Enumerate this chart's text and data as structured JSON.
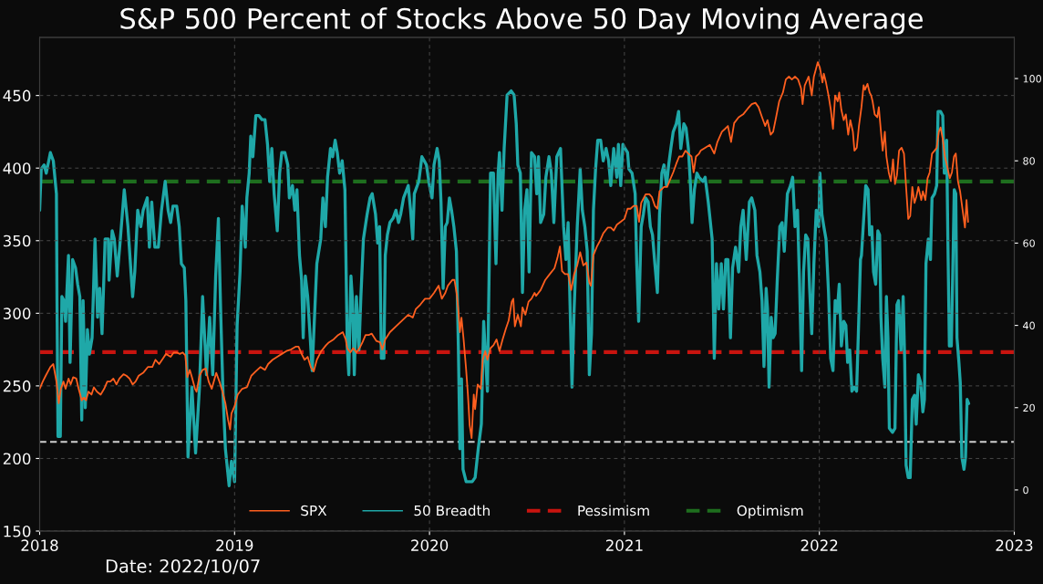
{
  "chart_data": {
    "type": "line",
    "title": "S&P 500 Percent of Stocks Above 50 Day Moving Average",
    "xlim": [
      2018,
      2023
    ],
    "xticks": [
      2018,
      2019,
      2020,
      2021,
      2022,
      2023
    ],
    "ylim": [
      150,
      490
    ],
    "yticks": [
      150,
      200,
      250,
      300,
      350,
      400,
      450
    ],
    "y2lim": [
      -10,
      110
    ],
    "y2ticks": [
      0,
      20,
      40,
      60,
      80,
      100
    ],
    "grid": true,
    "legend": "bottom",
    "annotations": [
      "Date: 2022/10/07"
    ],
    "series": [
      {
        "name": "SPX",
        "color": "#ff5f1f",
        "x": [
          2018.0,
          2018.016,
          2018.031,
          2018.055,
          2018.07,
          2018.086,
          2018.098,
          2018.109,
          2018.122,
          2018.133,
          2018.148,
          2018.159,
          2018.172,
          2018.188,
          2018.2,
          2018.216,
          2018.227,
          2018.238,
          2018.25,
          2018.266,
          2018.278,
          2018.294,
          2018.313,
          2018.331,
          2018.347,
          2018.363,
          2018.378,
          2018.394,
          2018.409,
          2018.43,
          2018.445,
          2018.461,
          2018.477,
          2018.492,
          2018.508,
          2018.531,
          2018.555,
          2018.578,
          2018.594,
          2018.613,
          2018.633,
          2018.648,
          2018.672,
          2018.688,
          2018.703,
          2018.719,
          2018.734,
          2018.747,
          2018.758,
          2018.77,
          2018.781,
          2018.797,
          2018.805,
          2018.82,
          2018.836,
          2018.852,
          2018.867,
          2018.883,
          2018.906,
          2018.922,
          2018.938,
          2018.953,
          2018.966,
          2018.977,
          2018.984,
          2019.0,
          2019.016,
          2019.039,
          2019.063,
          2019.086,
          2019.109,
          2019.133,
          2019.156,
          2019.172,
          2019.195,
          2019.219,
          2019.242,
          2019.266,
          2019.289,
          2019.313,
          2019.328,
          2019.344,
          2019.359,
          2019.375,
          2019.391,
          2019.406,
          2019.422,
          2019.445,
          2019.469,
          2019.484,
          2019.508,
          2019.531,
          2019.555,
          2019.57,
          2019.578,
          2019.594,
          2019.609,
          2019.625,
          2019.641,
          2019.656,
          2019.672,
          2019.688,
          2019.703,
          2019.727,
          2019.747,
          2019.758,
          2019.773,
          2019.797,
          2019.828,
          2019.859,
          2019.891,
          2019.914,
          2019.93,
          2019.953,
          2019.977,
          2020.0,
          2020.023,
          2020.047,
          2020.063,
          2020.081,
          2020.094,
          2020.117,
          2020.128,
          2020.141,
          2020.148,
          2020.156,
          2020.164,
          2020.175,
          2020.188,
          2020.197,
          2020.206,
          2020.216,
          2020.227,
          2020.234,
          2020.247,
          2020.263,
          2020.273,
          2020.286,
          2020.297,
          2020.313,
          2020.328,
          2020.344,
          2020.359,
          2020.375,
          2020.391,
          2020.406,
          2020.422,
          2020.43,
          2020.438,
          2020.453,
          2020.469,
          2020.477,
          2020.492,
          2020.508,
          2020.523,
          2020.539,
          2020.547,
          2020.57,
          2020.594,
          2020.617,
          2020.641,
          2020.656,
          2020.669,
          2020.68,
          2020.695,
          2020.711,
          2020.727,
          2020.742,
          2020.758,
          2020.773,
          2020.789,
          2020.805,
          2020.82,
          2020.828,
          2020.841,
          2020.859,
          2020.875,
          2020.891,
          2020.914,
          2020.93,
          2020.945,
          2020.961,
          2020.981,
          2021.0,
          2021.016,
          2021.031,
          2021.047,
          2021.063,
          2021.075,
          2021.086,
          2021.109,
          2021.128,
          2021.141,
          2021.156,
          2021.169,
          2021.18,
          2021.203,
          2021.219,
          2021.231,
          2021.25,
          2021.266,
          2021.281,
          2021.297,
          2021.313,
          2021.328,
          2021.344,
          2021.355,
          2021.367,
          2021.383,
          2021.391,
          2021.414,
          2021.438,
          2021.461,
          2021.477,
          2021.5,
          2021.516,
          2021.531,
          2021.547,
          2021.563,
          2021.586,
          2021.609,
          2021.633,
          2021.653,
          2021.672,
          2021.688,
          2021.706,
          2021.722,
          2021.734,
          2021.75,
          2021.763,
          2021.778,
          2021.794,
          2021.813,
          2021.828,
          2021.844,
          2021.859,
          2021.875,
          2021.891,
          2021.906,
          2021.914,
          2021.925,
          2021.945,
          2021.961,
          2021.972,
          2021.984,
          2021.992,
          2022.003,
          2022.016,
          2022.023,
          2022.034,
          2022.047,
          2022.059,
          2022.07,
          2022.081,
          2022.094,
          2022.102,
          2022.113,
          2022.125,
          2022.136,
          2022.148,
          2022.159,
          2022.172,
          2022.18,
          2022.192,
          2022.203,
          2022.216,
          2022.227,
          2022.234,
          2022.247,
          2022.258,
          2022.266,
          2022.273,
          2022.284,
          2022.297,
          2022.305,
          2022.316,
          2022.325,
          2022.336,
          2022.344,
          2022.356,
          2022.367,
          2022.378,
          2022.388,
          2022.398,
          2022.409,
          2022.422,
          2022.434,
          2022.445,
          2022.456,
          2022.466,
          2022.477,
          2022.488,
          2022.497,
          2022.508,
          2022.523,
          2022.531,
          2022.544,
          2022.555,
          2022.566,
          2022.578,
          2022.591,
          2022.602,
          2022.613,
          2022.622,
          2022.633,
          2022.644,
          2022.656,
          2022.669,
          2022.68,
          2022.691,
          2022.7,
          2022.711,
          2022.722,
          2022.734,
          2022.747,
          2022.755,
          2022.763
        ],
        "values": [
          248,
          253,
          257,
          263,
          265,
          253,
          238,
          248,
          253,
          248,
          255,
          251,
          256,
          255,
          248,
          240,
          242,
          240,
          246,
          244,
          249,
          246,
          244,
          248,
          253,
          253,
          255,
          251,
          255,
          258,
          257,
          255,
          251,
          253,
          257,
          259,
          263,
          263,
          268,
          265,
          269,
          272,
          270,
          273,
          273,
          272,
          273,
          271,
          256,
          261,
          256,
          248,
          246,
          257,
          261,
          262,
          253,
          248,
          259,
          253,
          246,
          238,
          227,
          220,
          231,
          236,
          244,
          248,
          249,
          257,
          260,
          263,
          261,
          265,
          268,
          270,
          272,
          274,
          275,
          277,
          277,
          272,
          268,
          270,
          263,
          260,
          268,
          274,
          278,
          280,
          282,
          285,
          287,
          282,
          276,
          273,
          276,
          273,
          276,
          280,
          285,
          285,
          286,
          281,
          280,
          275,
          282,
          287,
          291,
          295,
          299,
          297,
          303,
          306,
          310,
          310,
          314,
          319,
          310,
          314,
          319,
          323,
          323,
          312,
          302,
          287,
          297,
          282,
          261,
          244,
          223,
          214,
          244,
          234,
          251,
          248,
          268,
          274,
          268,
          276,
          278,
          282,
          274,
          282,
          289,
          295,
          308,
          310,
          291,
          299,
          291,
          304,
          299,
          308,
          310,
          314,
          312,
          316,
          323,
          327,
          331,
          338,
          346,
          329,
          327,
          327,
          316,
          327,
          333,
          342,
          333,
          335,
          321,
          319,
          340,
          346,
          350,
          355,
          359,
          359,
          357,
          361,
          363,
          365,
          372,
          372,
          374,
          374,
          363,
          376,
          382,
          382,
          380,
          374,
          372,
          384,
          387,
          387,
          391,
          397,
          403,
          408,
          408,
          412,
          410,
          408,
          397,
          408,
          410,
          412,
          414,
          416,
          410,
          418,
          425,
          427,
          429,
          418,
          431,
          435,
          437,
          441,
          444,
          445,
          442,
          435,
          429,
          433,
          423,
          425,
          435,
          446,
          452,
          461,
          463,
          461,
          463,
          461,
          455,
          444,
          457,
          463,
          450,
          463,
          469,
          473,
          469,
          459,
          465,
          459,
          450,
          440,
          427,
          450,
          446,
          452,
          440,
          433,
          437,
          423,
          433,
          425,
          412,
          414,
          429,
          442,
          457,
          454,
          458,
          452,
          450,
          446,
          437,
          435,
          442,
          425,
          412,
          425,
          408,
          397,
          391,
          406,
          389,
          395,
          412,
          414,
          410,
          387,
          365,
          367,
          387,
          376,
          380,
          387,
          378,
          384,
          378,
          393,
          397,
          410,
          412,
          414,
          425,
          428,
          420,
          408,
          401,
          393,
          397,
          408,
          410,
          391,
          384,
          372,
          359,
          378,
          363
        ]
      },
      {
        "name": "50 Breadth",
        "color": "#1fa8a8",
        "axis": "y2",
        "x": [
          2018.0,
          2018.008,
          2018.023,
          2018.034,
          2018.055,
          2018.07,
          2018.086,
          2018.089,
          2018.094,
          2018.106,
          2018.114,
          2018.125,
          2018.133,
          2018.148,
          2018.156,
          2018.169,
          2018.184,
          2018.195,
          2018.206,
          2018.216,
          2018.223,
          2018.234,
          2018.245,
          2018.255,
          2018.269,
          2018.284,
          2018.297,
          2018.308,
          2018.32,
          2018.336,
          2018.352,
          2018.356,
          2018.372,
          2018.383,
          2018.398,
          2018.414,
          2018.434,
          2018.453,
          2018.477,
          2018.488,
          2018.503,
          2018.519,
          2018.531,
          2018.552,
          2018.563,
          2018.575,
          2018.591,
          2018.609,
          2018.625,
          2018.644,
          2018.659,
          2018.672,
          2018.684,
          2018.703,
          2018.716,
          2018.727,
          2018.742,
          2018.75,
          2018.761,
          2018.781,
          2018.8,
          2018.82,
          2018.836,
          2018.856,
          2018.872,
          2018.888,
          2018.903,
          2018.917,
          2018.93,
          2018.941,
          2018.953,
          2018.972,
          2018.984,
          2019.0,
          2019.013,
          2019.028,
          2019.039,
          2019.055,
          2019.063,
          2019.075,
          2019.083,
          2019.094,
          2019.109,
          2019.125,
          2019.141,
          2019.156,
          2019.169,
          2019.18,
          2019.191,
          2019.203,
          2019.219,
          2019.231,
          2019.242,
          2019.258,
          2019.273,
          2019.281,
          2019.297,
          2019.309,
          2019.32,
          2019.333,
          2019.344,
          2019.352,
          2019.363,
          2019.375,
          2019.388,
          2019.398,
          2019.409,
          2019.422,
          2019.442,
          2019.453,
          2019.466,
          2019.477,
          2019.492,
          2019.503,
          2019.516,
          2019.527,
          2019.539,
          2019.552,
          2019.566,
          2019.578,
          2019.586,
          2019.597,
          2019.605,
          2019.614,
          2019.625,
          2019.638,
          2019.648,
          2019.661,
          2019.68,
          2019.695,
          2019.706,
          2019.723,
          2019.734,
          2019.744,
          2019.753,
          2019.766,
          2019.773,
          2019.784,
          2019.797,
          2019.813,
          2019.828,
          2019.841,
          2019.852,
          2019.867,
          2019.891,
          2019.903,
          2019.914,
          2019.922,
          2019.945,
          2019.961,
          2019.973,
          2019.984,
          2020.0,
          2020.013,
          2020.023,
          2020.039,
          2020.05,
          2020.059,
          2020.07,
          2020.081,
          2020.091,
          2020.102,
          2020.113,
          2020.125,
          2020.138,
          2020.148,
          2020.156,
          2020.164,
          2020.172,
          2020.188,
          2020.203,
          2020.219,
          2020.234,
          2020.25,
          2020.266,
          2020.278,
          2020.289,
          2020.297,
          2020.305,
          2020.313,
          2020.328,
          2020.341,
          2020.352,
          2020.359,
          2020.372,
          2020.383,
          2020.398,
          2020.419,
          2020.434,
          2020.445,
          2020.453,
          2020.466,
          2020.477,
          2020.488,
          2020.5,
          2020.511,
          2020.523,
          2020.539,
          2020.55,
          2020.559,
          2020.57,
          2020.586,
          2020.597,
          2020.613,
          2020.625,
          2020.638,
          2020.653,
          2020.672,
          2020.688,
          2020.7,
          2020.711,
          2020.719,
          2020.731,
          2020.742,
          2020.758,
          2020.773,
          2020.784,
          2020.797,
          2020.809,
          2020.82,
          2020.831,
          2020.841,
          2020.852,
          2020.863,
          2020.878,
          2020.891,
          2020.906,
          2020.919,
          2020.93,
          2020.945,
          2020.961,
          2020.969,
          2020.981,
          2020.992,
          2021.003,
          2021.016,
          2021.023,
          2021.039,
          2021.055,
          2021.063,
          2021.073,
          2021.086,
          2021.097,
          2021.109,
          2021.122,
          2021.133,
          2021.144,
          2021.156,
          2021.169,
          2021.18,
          2021.192,
          2021.203,
          2021.216,
          2021.227,
          2021.238,
          2021.25,
          2021.266,
          2021.278,
          2021.289,
          2021.305,
          2021.316,
          2021.328,
          2021.339,
          2021.347,
          2021.359,
          2021.372,
          2021.383,
          2021.403,
          2021.414,
          2021.43,
          2021.45,
          2021.461,
          2021.472,
          2021.484,
          2021.497,
          2021.508,
          2021.52,
          2021.531,
          2021.544,
          2021.555,
          2021.57,
          2021.586,
          2021.597,
          2021.609,
          2021.625,
          2021.641,
          2021.653,
          2021.669,
          2021.68,
          2021.695,
          2021.706,
          2021.716,
          2021.727,
          2021.734,
          2021.742,
          2021.753,
          2021.763,
          2021.773,
          2021.784,
          2021.797,
          2021.809,
          2021.82,
          2021.836,
          2021.852,
          2021.863,
          2021.875,
          2021.888,
          2021.898,
          2021.909,
          2021.919,
          2021.93,
          2021.941,
          2021.95,
          2021.961,
          2021.972,
          2021.984,
          2021.997,
          2022.003,
          2022.013,
          2022.023,
          2022.034,
          2022.047,
          2022.058,
          2022.07,
          2022.081,
          2022.091,
          2022.102,
          2022.113,
          2022.125,
          2022.136,
          2022.145,
          2022.156,
          2022.167,
          2022.18,
          2022.191,
          2022.2,
          2022.211,
          2022.216,
          2022.238,
          2022.25,
          2022.258,
          2022.269,
          2022.278,
          2022.289,
          2022.3,
          2022.309,
          2022.316,
          2022.325,
          2022.336,
          2022.344,
          2022.352,
          2022.359,
          2022.375,
          2022.388,
          2022.398,
          2022.406,
          2022.419,
          2022.43,
          2022.438,
          2022.445,
          2022.456,
          2022.466,
          2022.477,
          2022.488,
          2022.497,
          2022.508,
          2022.52,
          2022.531,
          2022.539,
          2022.547,
          2022.559,
          2022.57,
          2022.578,
          2022.591,
          2022.602,
          2022.609,
          2022.622,
          2022.633,
          2022.641,
          2022.653,
          2022.659,
          2022.667,
          2022.677,
          2022.684,
          2022.692,
          2022.7,
          2022.706,
          2022.716,
          2022.723,
          2022.731,
          2022.742,
          2022.75,
          2022.758,
          2022.766
        ],
        "values": [
          68,
          78,
          79,
          77,
          82,
          80,
          72,
          46,
          13,
          13,
          47,
          46,
          41,
          57,
          31,
          56,
          54,
          50,
          47,
          17,
          46,
          20,
          39,
          33,
          37,
          61,
          42,
          49,
          38,
          61,
          61,
          51,
          63,
          61,
          52,
          61,
          73,
          64,
          47,
          53,
          68,
          64,
          68,
          71,
          59,
          70,
          59,
          59,
          68,
          75,
          68,
          65,
          69,
          69,
          64,
          55,
          54,
          46,
          8,
          25,
          9,
          25,
          47,
          28,
          42,
          28,
          52,
          66,
          41,
          23,
          10,
          1,
          7,
          2,
          40,
          53,
          69,
          59,
          71,
          77,
          86,
          81,
          91,
          91,
          90,
          90,
          84,
          75,
          83,
          72,
          63,
          77,
          82,
          82,
          79,
          71,
          74,
          68,
          73,
          57,
          51,
          37,
          52,
          47,
          37,
          29,
          41,
          55,
          61,
          71,
          64,
          76,
          83,
          81,
          85,
          82,
          77,
          80,
          73,
          35,
          28,
          52,
          46,
          28,
          47,
          34,
          47,
          61,
          67,
          71,
          72,
          67,
          60,
          64,
          32,
          32,
          57,
          62,
          65,
          66,
          68,
          65,
          67,
          71,
          74,
          68,
          61,
          72,
          75,
          81,
          80,
          79,
          74,
          71,
          79,
          83,
          80,
          70,
          49,
          64,
          65,
          71,
          68,
          64,
          58,
          35,
          10,
          27,
          5,
          2,
          2,
          2,
          3,
          10,
          16,
          41,
          31,
          24,
          50,
          77,
          77,
          55,
          77,
          82,
          68,
          83,
          96,
          97,
          96,
          89,
          79,
          77,
          48,
          68,
          73,
          53,
          82,
          81,
          72,
          81,
          65,
          67,
          76,
          81,
          77,
          65,
          81,
          83,
          64,
          56,
          65,
          49,
          25,
          44,
          64,
          78,
          68,
          64,
          58,
          28,
          38,
          68,
          78,
          85,
          85,
          80,
          83,
          80,
          74,
          83,
          76,
          84,
          74,
          84,
          83,
          82,
          78,
          77,
          72,
          55,
          41,
          64,
          67,
          71,
          70,
          64,
          62,
          55,
          48,
          67,
          77,
          79,
          74,
          79,
          83,
          87,
          89,
          92,
          83,
          89,
          88,
          83,
          74,
          65,
          73,
          77,
          76,
          75,
          76,
          70,
          61,
          32,
          55,
          44,
          55,
          44,
          56,
          56,
          37,
          54,
          59,
          53,
          64,
          68,
          56,
          70,
          71,
          68,
          57,
          53,
          46,
          30,
          49,
          44,
          25,
          42,
          37,
          38,
          51,
          64,
          65,
          58,
          72,
          74,
          76,
          64,
          68,
          51,
          29,
          53,
          62,
          61,
          49,
          38,
          55,
          68,
          64,
          77,
          67,
          64,
          61,
          48,
          32,
          29,
          46,
          43,
          50,
          35,
          41,
          40,
          31,
          34,
          24,
          25,
          24,
          38,
          56,
          57,
          74,
          73,
          62,
          64,
          53,
          50,
          63,
          62,
          42,
          32,
          25,
          47,
          37,
          15,
          14,
          15,
          45,
          46,
          34,
          47,
          31,
          6,
          3,
          3,
          22,
          23,
          16,
          28,
          26,
          19,
          22,
          55,
          61,
          56,
          71,
          72,
          74,
          92,
          92,
          91,
          77,
          85,
          62,
          35,
          35,
          52,
          73,
          72,
          37,
          31,
          26,
          8,
          5,
          8,
          22,
          21
        ]
      }
    ],
    "ref_lines": [
      {
        "axis": "y2",
        "value": 33.5,
        "label": "Pessimism",
        "color": "#c8140f",
        "line_style": "dashed"
      },
      {
        "axis": "y2",
        "value": 75,
        "label": "Optimism",
        "color": "#1e6e1e",
        "line_style": "dashed"
      },
      {
        "axis": "y2",
        "value": 11.7,
        "color": "#cfcfcf",
        "line_style": "dashed"
      }
    ]
  }
}
